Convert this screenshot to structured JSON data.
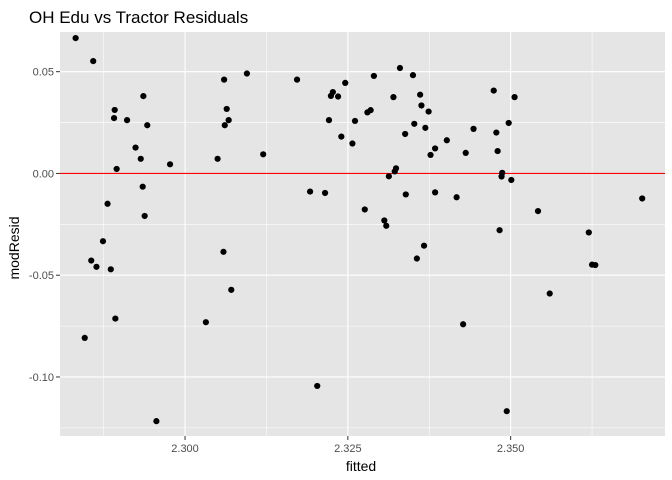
{
  "chart_data": {
    "type": "scatter",
    "title": "OH Edu vs Tractor Residuals",
    "xlabel": "fitted",
    "ylabel": "modResid",
    "xlim": [
      2.2808,
      2.3737
    ],
    "ylim": [
      -0.129,
      0.0695
    ],
    "x_ticks": [
      2.3,
      2.325,
      2.35
    ],
    "x_tick_labels": [
      "2.300",
      "2.325",
      "2.350"
    ],
    "y_ticks": [
      0.05,
      0.0,
      -0.05,
      -0.1
    ],
    "y_tick_labels": [
      "0.05",
      "0.00",
      "-0.05",
      "-0.10"
    ],
    "grid": true,
    "panel_background": "#e5e5e5",
    "grid_color": "#ffffff",
    "point_color": "#000000",
    "hline": {
      "y": 0.0,
      "color": "#ff0000"
    },
    "points": [
      {
        "x": 2.2832,
        "y": 0.0665
      },
      {
        "x": 2.2846,
        "y": -0.0808
      },
      {
        "x": 2.2856,
        "y": -0.0428
      },
      {
        "x": 2.2859,
        "y": 0.0552
      },
      {
        "x": 2.2864,
        "y": -0.0459
      },
      {
        "x": 2.2874,
        "y": -0.0333
      },
      {
        "x": 2.2881,
        "y": -0.0149
      },
      {
        "x": 2.2886,
        "y": -0.0471
      },
      {
        "x": 2.2891,
        "y": 0.0272
      },
      {
        "x": 2.2892,
        "y": 0.0312
      },
      {
        "x": 2.2893,
        "y": -0.0713
      },
      {
        "x": 2.2895,
        "y": 0.0022
      },
      {
        "x": 2.2911,
        "y": 0.0262
      },
      {
        "x": 2.2924,
        "y": 0.0127
      },
      {
        "x": 2.2932,
        "y": 0.0072
      },
      {
        "x": 2.2935,
        "y": -0.0065
      },
      {
        "x": 2.2936,
        "y": 0.038
      },
      {
        "x": 2.2938,
        "y": -0.0209
      },
      {
        "x": 2.2942,
        "y": 0.0237
      },
      {
        "x": 2.2956,
        "y": -0.1217
      },
      {
        "x": 2.2977,
        "y": 0.0045
      },
      {
        "x": 2.3032,
        "y": -0.0731
      },
      {
        "x": 2.305,
        "y": 0.0072
      },
      {
        "x": 2.3059,
        "y": -0.0385
      },
      {
        "x": 2.306,
        "y": 0.0461
      },
      {
        "x": 2.3061,
        "y": 0.0237
      },
      {
        "x": 2.3064,
        "y": 0.0317
      },
      {
        "x": 2.3067,
        "y": 0.0262
      },
      {
        "x": 2.3071,
        "y": -0.0572
      },
      {
        "x": 2.3095,
        "y": 0.0491
      },
      {
        "x": 2.312,
        "y": 0.0094
      },
      {
        "x": 2.3172,
        "y": 0.0461
      },
      {
        "x": 2.3192,
        "y": -0.0089
      },
      {
        "x": 2.3203,
        "y": -0.1044
      },
      {
        "x": 2.3215,
        "y": -0.0096
      },
      {
        "x": 2.3221,
        "y": 0.0262
      },
      {
        "x": 2.3224,
        "y": 0.0381
      },
      {
        "x": 2.3227,
        "y": 0.04
      },
      {
        "x": 2.3235,
        "y": 0.0378
      },
      {
        "x": 2.324,
        "y": 0.0181
      },
      {
        "x": 2.3246,
        "y": 0.0445
      },
      {
        "x": 2.3257,
        "y": 0.0147
      },
      {
        "x": 2.3261,
        "y": 0.0258
      },
      {
        "x": 2.3276,
        "y": -0.0177
      },
      {
        "x": 2.328,
        "y": 0.03
      },
      {
        "x": 2.3285,
        "y": 0.0311
      },
      {
        "x": 2.329,
        "y": 0.0479
      },
      {
        "x": 2.3306,
        "y": -0.0231
      },
      {
        "x": 2.3309,
        "y": -0.0257
      },
      {
        "x": 2.3313,
        "y": -0.0014
      },
      {
        "x": 2.332,
        "y": 0.0375
      },
      {
        "x": 2.3322,
        "y": 0.001
      },
      {
        "x": 2.3324,
        "y": 0.0025
      },
      {
        "x": 2.333,
        "y": 0.0518
      },
      {
        "x": 2.3338,
        "y": 0.0194
      },
      {
        "x": 2.3339,
        "y": -0.0103
      },
      {
        "x": 2.335,
        "y": 0.0483
      },
      {
        "x": 2.3352,
        "y": 0.0244
      },
      {
        "x": 2.3356,
        "y": -0.0418
      },
      {
        "x": 2.3361,
        "y": 0.0387
      },
      {
        "x": 2.3363,
        "y": 0.0334
      },
      {
        "x": 2.3367,
        "y": -0.0355
      },
      {
        "x": 2.3369,
        "y": 0.0224
      },
      {
        "x": 2.3374,
        "y": 0.0304
      },
      {
        "x": 2.3377,
        "y": 0.0091
      },
      {
        "x": 2.3384,
        "y": -0.0093
      },
      {
        "x": 2.3384,
        "y": 0.0123
      },
      {
        "x": 2.3402,
        "y": 0.0163
      },
      {
        "x": 2.3417,
        "y": -0.0117
      },
      {
        "x": 2.3427,
        "y": -0.0741
      },
      {
        "x": 2.3431,
        "y": 0.0101
      },
      {
        "x": 2.3443,
        "y": 0.0219
      },
      {
        "x": 2.3474,
        "y": 0.0407
      },
      {
        "x": 2.3478,
        "y": 0.0201
      },
      {
        "x": 2.348,
        "y": 0.011
      },
      {
        "x": 2.3483,
        "y": -0.0279
      },
      {
        "x": 2.3486,
        "y": -0.0015
      },
      {
        "x": 2.3487,
        "y": 0.0003
      },
      {
        "x": 2.3494,
        "y": -0.1168
      },
      {
        "x": 2.3497,
        "y": 0.0248
      },
      {
        "x": 2.3501,
        "y": -0.0032
      },
      {
        "x": 2.3506,
        "y": 0.0375
      },
      {
        "x": 2.3542,
        "y": -0.0185
      },
      {
        "x": 2.356,
        "y": -0.059
      },
      {
        "x": 2.362,
        "y": -0.029
      },
      {
        "x": 2.3625,
        "y": -0.0448
      },
      {
        "x": 2.363,
        "y": -0.045
      },
      {
        "x": 2.3702,
        "y": -0.0123
      }
    ]
  }
}
